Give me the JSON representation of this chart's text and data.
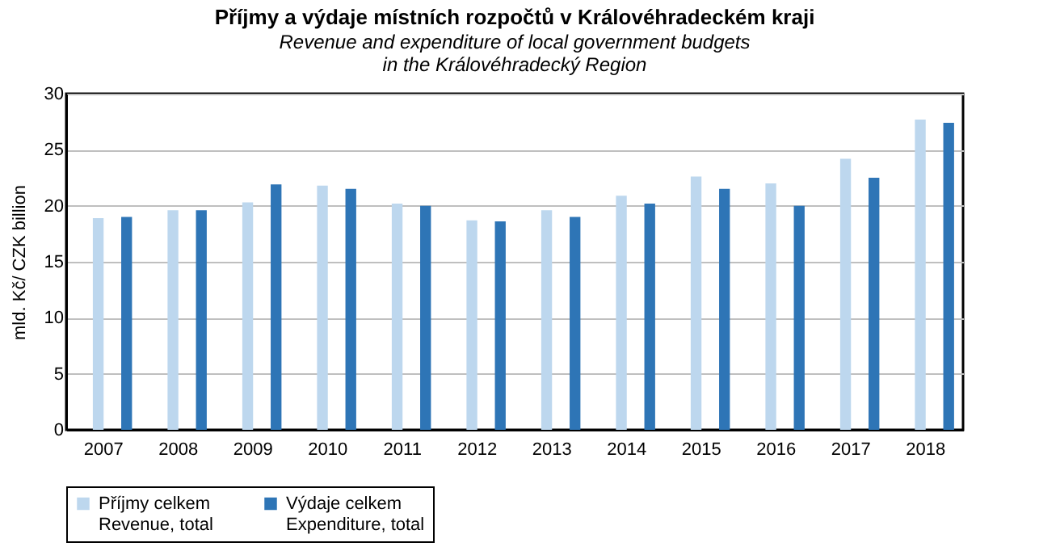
{
  "chart_data": {
    "type": "bar",
    "title": "Příjmy a výdaje místních rozpočtů v Královéhradeckém kraji",
    "subtitle": "Revenue and expenditure of local government budgets\nin the Královéhradecký Region",
    "ylabel": "mld. Kč/ CZK billion",
    "categories": [
      "2007",
      "2008",
      "2009",
      "2010",
      "2011",
      "2012",
      "2013",
      "2014",
      "2015",
      "2016",
      "2017",
      "2018"
    ],
    "series": [
      {
        "name": "Příjmy celkem\nRevenue, total",
        "color": "#bdd7ee",
        "values": [
          18.9,
          19.6,
          20.3,
          21.8,
          20.2,
          18.7,
          19.6,
          20.9,
          22.6,
          22.0,
          24.2,
          27.7
        ]
      },
      {
        "name": "Výdaje celkem\nExpenditure, total",
        "color": "#2e75b6",
        "values": [
          19.0,
          19.6,
          21.9,
          21.5,
          20.0,
          18.6,
          19.0,
          20.2,
          21.5,
          20.0,
          22.5,
          27.4
        ]
      }
    ],
    "ylim": [
      0,
      30
    ],
    "yticks": [
      0,
      5,
      10,
      15,
      20,
      25,
      30
    ],
    "grid": "y",
    "legend": "bottom"
  }
}
